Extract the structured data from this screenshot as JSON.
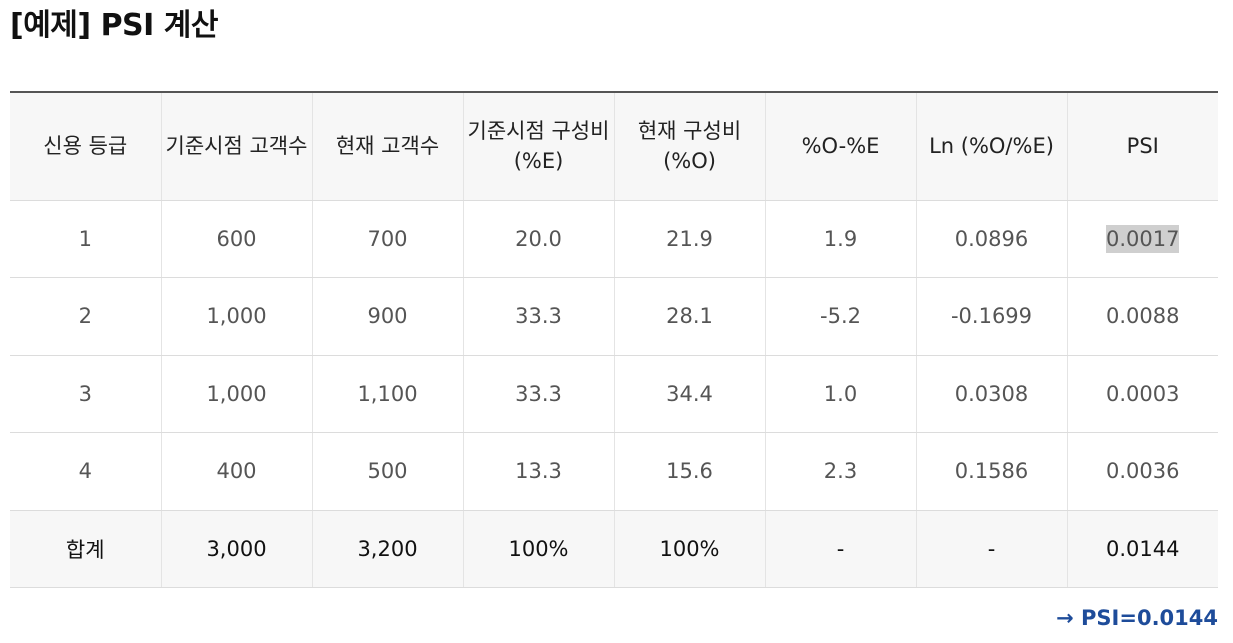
{
  "title": "[예제] PSI 계산",
  "table": {
    "headers": [
      "신용 등급",
      "기준시점 고객수",
      "현재 고객수",
      "기준시점 구성비(%E)",
      "현재 구성비(%O)",
      "%O-%E",
      "Ln (%O/%E)",
      "PSI"
    ],
    "rows": [
      [
        "1",
        "600",
        "700",
        "20.0",
        "21.9",
        "1.9",
        "0.0896",
        "0.0017"
      ],
      [
        "2",
        "1,000",
        "900",
        "33.3",
        "28.1",
        "-5.2",
        "-0.1699",
        "0.0088"
      ],
      [
        "3",
        "1,000",
        "1,100",
        "33.3",
        "34.4",
        "1.0",
        "0.0308",
        "0.0003"
      ],
      [
        "4",
        "400",
        "500",
        "13.3",
        "15.6",
        "2.3",
        "0.1586",
        "0.0036"
      ]
    ],
    "total": [
      "합계",
      "3,000",
      "3,200",
      "100%",
      "100%",
      "-",
      "-",
      "0.0144"
    ]
  },
  "result": "→ PSI=0.0144"
}
